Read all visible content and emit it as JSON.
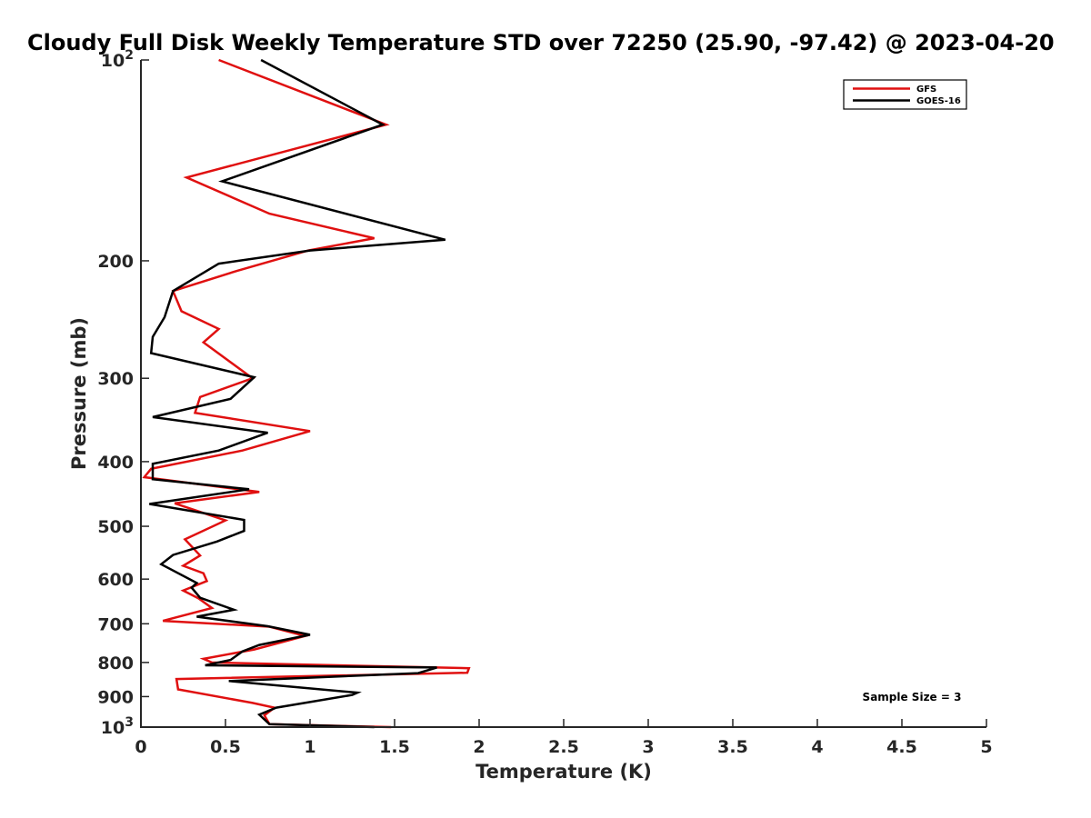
{
  "chart_data": {
    "type": "line",
    "title": "Cloudy Full Disk Weekly Temperature STD over 72250 (25.90, -97.42) @ 2023-04-20",
    "xlabel": "Temperature (K)",
    "ylabel": "Pressure (mb)",
    "xlim": [
      0,
      5
    ],
    "ylim": [
      100,
      1000
    ],
    "y_scale": "log",
    "y_reversed": true,
    "x_ticks": [
      "0",
      "0.5",
      "1",
      "1.5",
      "2",
      "2.5",
      "3",
      "3.5",
      "4",
      "4.5",
      "5"
    ],
    "x_tick_values": [
      0,
      0.5,
      1,
      1.5,
      2,
      2.5,
      3,
      3.5,
      4,
      4.5,
      5
    ],
    "y_ticks": [
      {
        "value": 100,
        "base": "10",
        "exp": "2"
      },
      {
        "value": 200,
        "label": "200"
      },
      {
        "value": 300,
        "label": "300"
      },
      {
        "value": 400,
        "label": "400"
      },
      {
        "value": 500,
        "label": "500"
      },
      {
        "value": 600,
        "label": "600"
      },
      {
        "value": 700,
        "label": "700"
      },
      {
        "value": 800,
        "label": "800"
      },
      {
        "value": 900,
        "label": "900"
      },
      {
        "value": 1000,
        "base": "10",
        "exp": "3"
      }
    ],
    "grid": false,
    "legend_position": "top-right",
    "annotation": "Sample Size = 3",
    "series": [
      {
        "name": "GFS",
        "color": "#e01010",
        "points": [
          [
            0.46,
            100
          ],
          [
            1.45,
            125
          ],
          [
            0.27,
            150
          ],
          [
            0.76,
            170
          ],
          [
            1.38,
            185
          ],
          [
            0.99,
            193
          ],
          [
            0.57,
            207
          ],
          [
            0.19,
            222
          ],
          [
            0.24,
            238
          ],
          [
            0.46,
            253
          ],
          [
            0.37,
            265
          ],
          [
            0.66,
            300
          ],
          [
            0.35,
            320
          ],
          [
            0.32,
            338
          ],
          [
            1.0,
            360
          ],
          [
            0.6,
            385
          ],
          [
            0.06,
            410
          ],
          [
            0.02,
            422
          ],
          [
            0.7,
            444
          ],
          [
            0.2,
            462
          ],
          [
            0.5,
            490
          ],
          [
            0.26,
            523
          ],
          [
            0.35,
            553
          ],
          [
            0.25,
            573
          ],
          [
            0.37,
            588
          ],
          [
            0.39,
            604
          ],
          [
            0.25,
            624
          ],
          [
            0.34,
            641
          ],
          [
            0.42,
            663
          ],
          [
            0.13,
            693
          ],
          [
            0.76,
            707
          ],
          [
            0.97,
            730
          ],
          [
            0.67,
            765
          ],
          [
            0.37,
            790
          ],
          [
            0.42,
            800
          ],
          [
            1.94,
            816
          ],
          [
            1.93,
            829
          ],
          [
            0.21,
            847
          ],
          [
            0.22,
            878
          ],
          [
            0.66,
            920
          ],
          [
            0.79,
            935
          ],
          [
            0.73,
            960
          ],
          [
            0.76,
            990
          ],
          [
            1.48,
            1000
          ]
        ]
      },
      {
        "name": "GOES-16",
        "color": "#000000",
        "points": [
          [
            0.71,
            100
          ],
          [
            1.43,
            125
          ],
          [
            0.48,
            152
          ],
          [
            1.8,
            186
          ],
          [
            1.0,
            193
          ],
          [
            0.46,
            202
          ],
          [
            0.19,
            222
          ],
          [
            0.14,
            243
          ],
          [
            0.07,
            260
          ],
          [
            0.06,
            275
          ],
          [
            0.67,
            299
          ],
          [
            0.53,
            322
          ],
          [
            0.07,
            343
          ],
          [
            0.75,
            362
          ],
          [
            0.46,
            385
          ],
          [
            0.07,
            403
          ],
          [
            0.07,
            425
          ],
          [
            0.64,
            440
          ],
          [
            0.05,
            463
          ],
          [
            0.61,
            489
          ],
          [
            0.61,
            508
          ],
          [
            0.45,
            527
          ],
          [
            0.19,
            552
          ],
          [
            0.12,
            570
          ],
          [
            0.33,
            608
          ],
          [
            0.3,
            618
          ],
          [
            0.35,
            640
          ],
          [
            0.55,
            667
          ],
          [
            0.33,
            683
          ],
          [
            0.75,
            706
          ],
          [
            1.0,
            727
          ],
          [
            0.7,
            753
          ],
          [
            0.6,
            770
          ],
          [
            0.53,
            793
          ],
          [
            0.38,
            808
          ],
          [
            1.75,
            814
          ],
          [
            1.64,
            830
          ],
          [
            0.52,
            853
          ],
          [
            1.28,
            888
          ],
          [
            1.25,
            895
          ],
          [
            0.8,
            935
          ],
          [
            0.7,
            958
          ],
          [
            0.76,
            990
          ],
          [
            1.38,
            1000
          ]
        ]
      }
    ]
  }
}
